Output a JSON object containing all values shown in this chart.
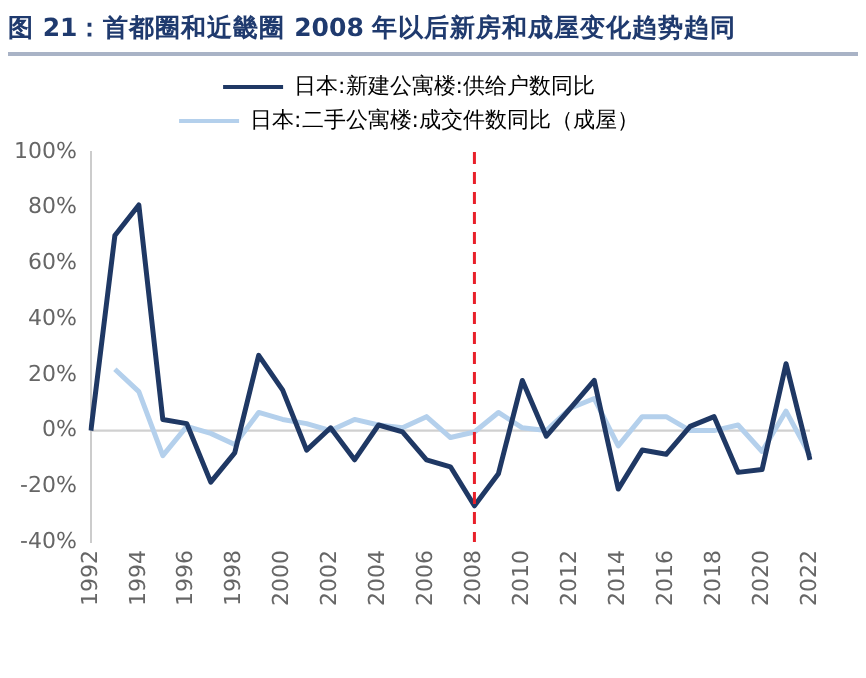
{
  "chart_data": {
    "type": "line",
    "title": "图 21：首都圈和近畿圈 2008 年以后新房和成屋变化趋势趋同",
    "categories": [
      "1992",
      null,
      "1994",
      null,
      "1996",
      null,
      "1998",
      null,
      "2000",
      null,
      "2002",
      null,
      "2004",
      null,
      "2006",
      null,
      "2008",
      null,
      "2010",
      null,
      "2012",
      null,
      "2014",
      null,
      "2016",
      null,
      "2018",
      null,
      "2020",
      null,
      "2022"
    ],
    "series": [
      {
        "name": "日本:新建公寓楼:供给户数同比",
        "color": "#1f3864",
        "values": [
          0,
          70,
          81,
          4,
          2.5,
          -18.5,
          -8,
          27,
          14.5,
          -7,
          1,
          -10.5,
          2,
          -0.5,
          -10.5,
          -13,
          -27,
          -15.5,
          18,
          -2,
          8,
          18,
          -21,
          -7,
          -8.5,
          1.5,
          5,
          -15,
          -14,
          24,
          -10.5
        ]
      },
      {
        "name": "日本:二手公寓楼:成交件数同比（成屋）",
        "color": "#b4d0ec",
        "values": [
          null,
          22,
          14,
          -9,
          1.5,
          -1,
          -5,
          6.5,
          4,
          2.5,
          0,
          4,
          2,
          1,
          5,
          -2.5,
          -0.5,
          6.5,
          1,
          0,
          8,
          11.5,
          -5.5,
          5,
          5,
          0,
          0,
          2,
          -7.5,
          7,
          -9
        ]
      }
    ],
    "ylim": [
      -40,
      100
    ],
    "yticks": [
      {
        "value": -40,
        "label": "-40%"
      },
      {
        "value": -20,
        "label": "-20%"
      },
      {
        "value": 0,
        "label": "0%"
      },
      {
        "value": 20,
        "label": "20%"
      },
      {
        "value": 40,
        "label": "40%"
      },
      {
        "value": 60,
        "label": "60%"
      },
      {
        "value": 80,
        "label": "80%"
      },
      {
        "value": 100,
        "label": "100%"
      }
    ],
    "ref_lines": [
      {
        "axis": "x",
        "value": "2008",
        "color": "#e8202a",
        "line_style": "dashed"
      }
    ],
    "legend": "top",
    "grid": false,
    "marker": "none",
    "line_style": "solid"
  }
}
